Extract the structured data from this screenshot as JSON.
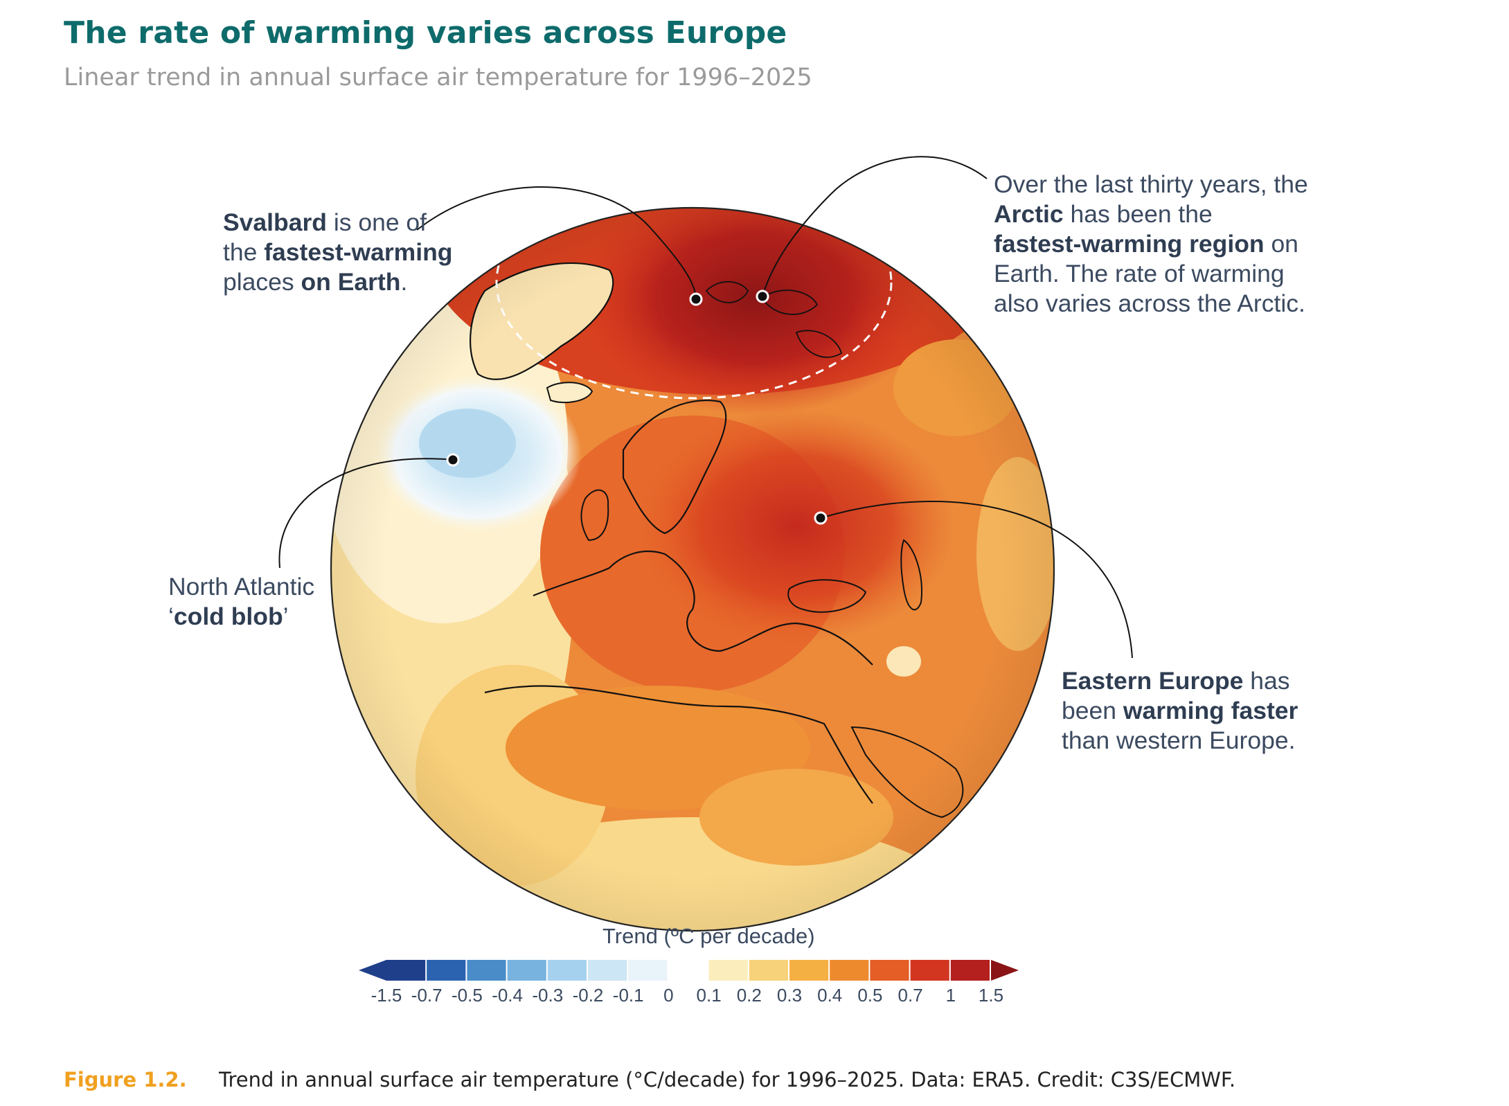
{
  "title": "The rate of warming varies across Europe",
  "subtitle": "Linear trend in annual surface air temperature for 1996–2025",
  "annotations": {
    "svalbard": {
      "l1_b": "Svalbard",
      "l1_r": " is one of",
      "l2_r": "the ",
      "l2_b": "fastest-warming",
      "l3_r": "places ",
      "l3_b": "on Earth",
      "l3_r2": "."
    },
    "arctic": {
      "l1_r": "Over the last thirty years, the",
      "l2_b": "Arctic",
      "l2_r": " has been the",
      "l3_b": "fastest-warming region",
      "l3_r": " on",
      "l4_r": "Earth. The rate of warming",
      "l5_r": "also varies across the Arctic."
    },
    "cold_blob": {
      "l1_r": "North Atlantic",
      "l2_r1": "‘",
      "l2_b": "cold blob",
      "l2_r2": "’"
    },
    "eastern": {
      "l1_b": "Eastern Europe",
      "l1_r": " has",
      "l2_r": "been ",
      "l2_b": "warming faster",
      "l3_r": "than western Europe."
    }
  },
  "legend": {
    "title": "Trend (ºC per decade)",
    "ticks": [
      "-1.5",
      "-0.7",
      "-0.5",
      "-0.4",
      "-0.3",
      "-0.2",
      "-0.1",
      "0",
      "0.1",
      "0.2",
      "0.3",
      "0.4",
      "0.5",
      "0.7",
      "1",
      "1.5"
    ],
    "colors": [
      "#1f3f8a",
      "#2b63b0",
      "#4a8cc8",
      "#78b3df",
      "#a6d1ee",
      "#cde6f5",
      "#e9f3fa",
      "#ffffff",
      "#fbeebc",
      "#f8d27a",
      "#f5b043",
      "#ee8a2e",
      "#e45e26",
      "#d23620",
      "#b3201d",
      "#8a1416"
    ]
  },
  "caption": {
    "label": "Figure 1.2.",
    "text": "Trend in annual surface air temperature (°C/decade) for 1996–2025. Data: ERA5. Credit: C3S/ECMWF."
  }
}
